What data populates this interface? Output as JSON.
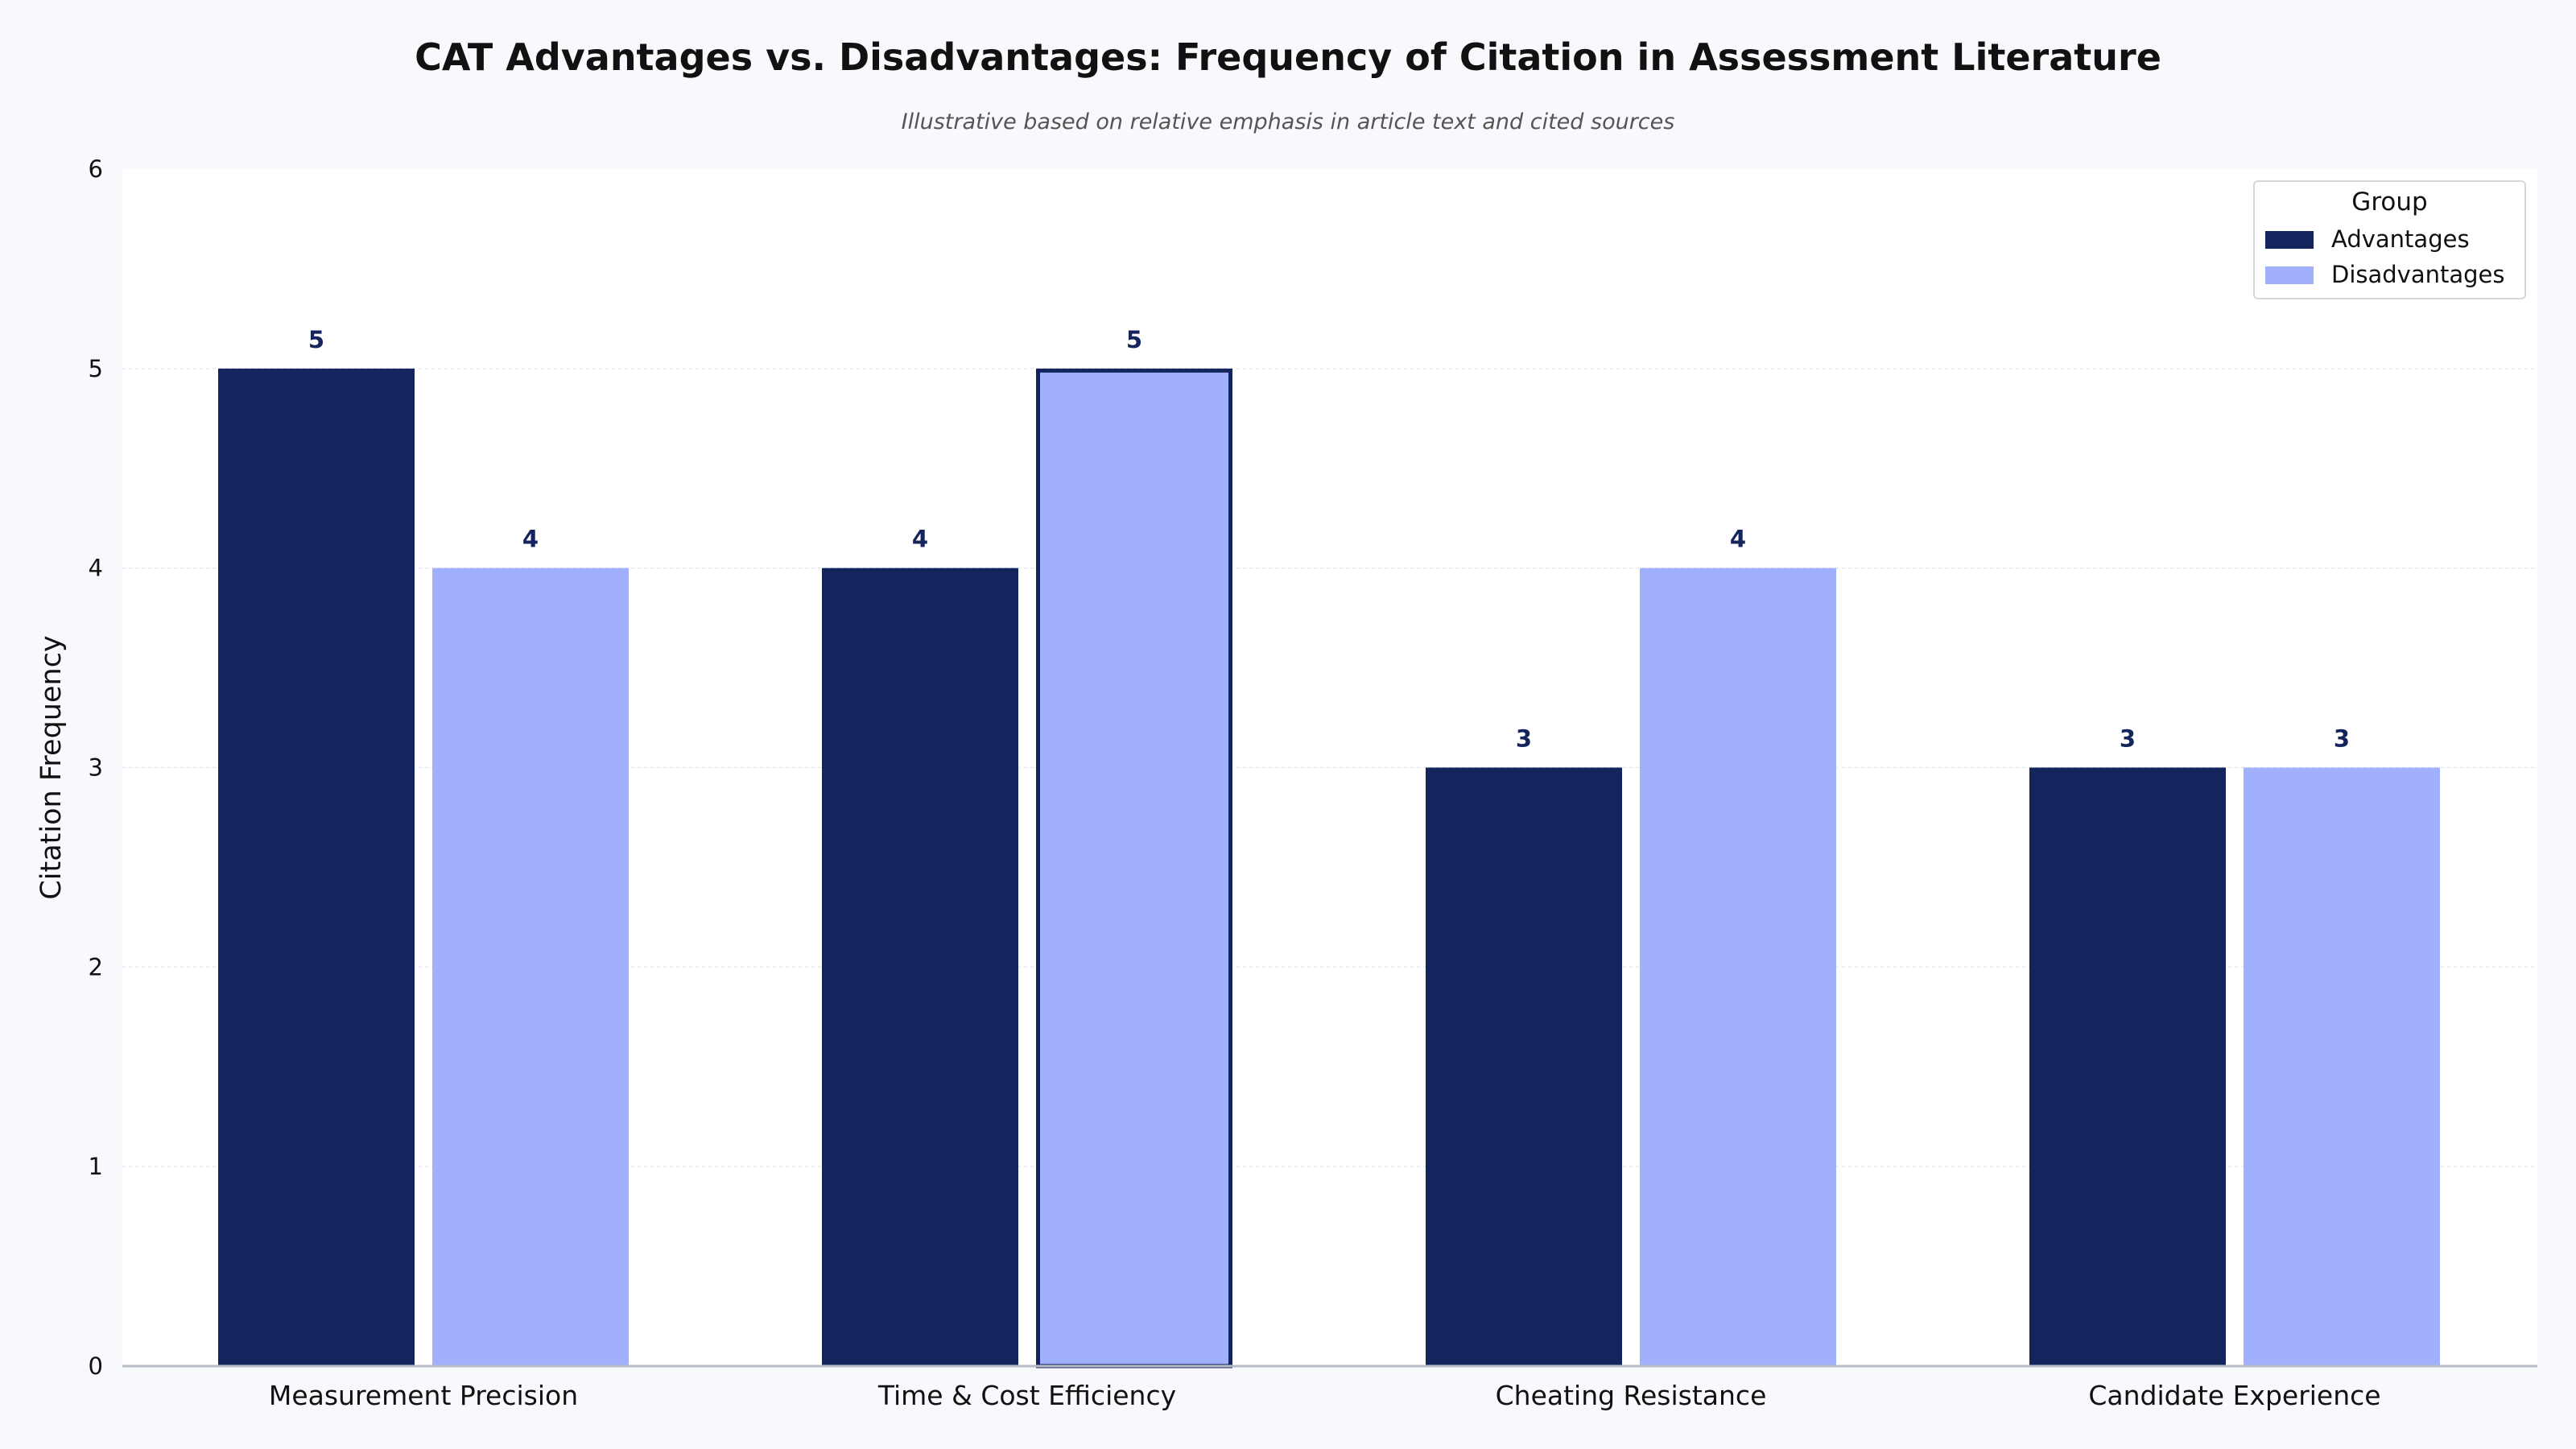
{
  "chart_data": {
    "type": "bar",
    "title": "CAT Advantages vs. Disadvantages: Frequency of Citation in Assessment Literature",
    "subtitle": "Illustrative based on relative emphasis in article text and cited sources",
    "xlabel": "",
    "ylabel": "Citation Frequency",
    "categories": [
      "Measurement Precision",
      "Time & Cost Efficiency",
      "Cheating Resistance",
      "Candidate Experience"
    ],
    "series": [
      {
        "name": "Advantages",
        "values": [
          5,
          4,
          3,
          3
        ],
        "color": "#14245c"
      },
      {
        "name": "Disadvantages",
        "values": [
          4,
          5,
          4,
          3
        ],
        "color": "#a0b0fc"
      }
    ],
    "highlight": {
      "series": 1,
      "category": 1,
      "outline_color": "#14245c"
    },
    "ylim": [
      0,
      6
    ],
    "yticks": [
      "0",
      "1",
      "2",
      "3",
      "4",
      "5",
      "6"
    ],
    "grid": true,
    "legend": {
      "title": "Group",
      "placement": "top-right"
    },
    "colors": {
      "background": "#f7f9fc",
      "plot_background": "#ffffff",
      "value_label": "#14245c"
    }
  }
}
